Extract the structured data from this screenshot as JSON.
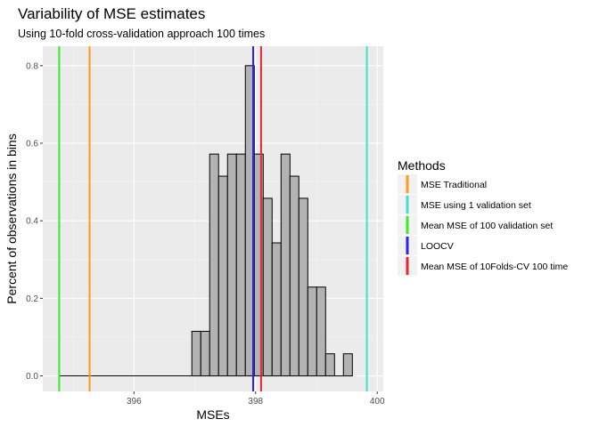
{
  "chart_data": {
    "type": "bar",
    "title": "Variability of MSE estimates",
    "subtitle": "Using 10-fold cross-validation approach 100 times",
    "xlabel": "MSEs",
    "ylabel": "Percent of observations in bins",
    "xlim": [
      394.5,
      400.1
    ],
    "ylim": [
      -0.04,
      0.85
    ],
    "x_ticks": [
      396,
      398,
      400
    ],
    "y_ticks": [
      0.0,
      0.2,
      0.4,
      0.6,
      0.8
    ],
    "grid": true,
    "bin_width": 0.1467,
    "bins": [
      {
        "x": 397.025,
        "value": 0.115
      },
      {
        "x": 397.172,
        "value": 0.115
      },
      {
        "x": 397.318,
        "value": 0.572
      },
      {
        "x": 397.465,
        "value": 0.515
      },
      {
        "x": 397.612,
        "value": 0.572
      },
      {
        "x": 397.758,
        "value": 0.572
      },
      {
        "x": 397.905,
        "value": 0.8
      },
      {
        "x": 398.052,
        "value": 0.572
      },
      {
        "x": 398.198,
        "value": 0.458
      },
      {
        "x": 398.345,
        "value": 0.343
      },
      {
        "x": 398.492,
        "value": 0.572
      },
      {
        "x": 398.638,
        "value": 0.515
      },
      {
        "x": 398.785,
        "value": 0.458
      },
      {
        "x": 398.932,
        "value": 0.229
      },
      {
        "x": 399.078,
        "value": 0.229
      },
      {
        "x": 399.225,
        "value": 0.057
      },
      {
        "x": 399.372,
        "value": 0.0
      },
      {
        "x": 399.518,
        "value": 0.057
      }
    ],
    "zero_line_range": [
      394.78,
      396.95
    ],
    "bar_color": "#b3b3b3",
    "vlines": [
      {
        "name": "MSE Traditional",
        "x": 395.27,
        "color": "#ff9a1a"
      },
      {
        "name": "MSE using 1 validation set",
        "x": 399.83,
        "color": "#40e0d0"
      },
      {
        "name": "Mean MSE of 100 validation set",
        "x": 394.77,
        "color": "#33ee22"
      },
      {
        "name": "LOOCV",
        "x": 397.96,
        "color": "#2b22ee"
      },
      {
        "name": "Mean MSE of 10Folds-CV 100 time",
        "x": 398.09,
        "color": "#ee2233"
      }
    ],
    "legend": {
      "title": "Methods",
      "position": "right"
    }
  }
}
